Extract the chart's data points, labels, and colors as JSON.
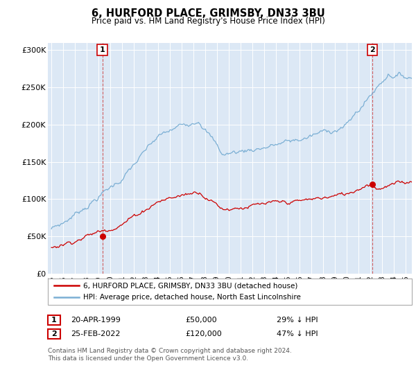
{
  "title": "6, HURFORD PLACE, GRIMSBY, DN33 3BU",
  "subtitle": "Price paid vs. HM Land Registry's House Price Index (HPI)",
  "hpi_color": "#7bafd4",
  "price_color": "#cc0000",
  "annotation1_date": "20-APR-1999",
  "annotation1_price": "£50,000",
  "annotation1_hpi": "29% ↓ HPI",
  "annotation2_date": "25-FEB-2022",
  "annotation2_price": "£120,000",
  "annotation2_hpi": "47% ↓ HPI",
  "legend_label1": "6, HURFORD PLACE, GRIMSBY, DN33 3BU (detached house)",
  "legend_label2": "HPI: Average price, detached house, North East Lincolnshire",
  "footnote": "Contains HM Land Registry data © Crown copyright and database right 2024.\nThis data is licensed under the Open Government Licence v3.0.",
  "ylim": [
    0,
    310000
  ],
  "yticks": [
    0,
    50000,
    100000,
    150000,
    200000,
    250000,
    300000
  ],
  "ytick_labels": [
    "£0",
    "£50K",
    "£100K",
    "£150K",
    "£200K",
    "£250K",
    "£300K"
  ],
  "sale1_x": 1999.31,
  "sale1_y": 50000,
  "sale2_x": 2022.15,
  "sale2_y": 120000,
  "dashed1_x": 1999.31,
  "dashed2_x": 2022.15,
  "background_color": "#dce8f5",
  "xlim_left": 1994.7,
  "xlim_right": 2025.5
}
